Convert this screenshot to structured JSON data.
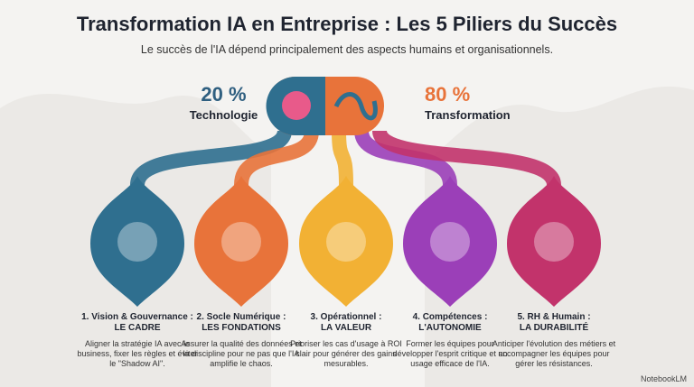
{
  "header": {
    "title": "Transformation IA en Entreprise : Les 5 Piliers du Succès",
    "subtitle": "Le succès de l'IA dépend principalement des aspects humains et organisationnels."
  },
  "split": {
    "left": {
      "percent": "20 %",
      "label": "Technologie"
    },
    "right": {
      "percent": "80 %",
      "label": "Transformation"
    }
  },
  "pillars": [
    {
      "heading": "1. Vision & Gouvernance :",
      "subheading": "LE CADRE",
      "text": "Aligner la stratégie IA avec le business, fixer les règles et éviter le \"Shadow AI\"."
    },
    {
      "heading": "2. Socle Numérique :",
      "subheading": "LES FONDATIONS",
      "text": "Assurer la qualité des données et la discipline pour ne pas que l'IA amplifie le chaos."
    },
    {
      "heading": "3. Opérationnel :",
      "subheading": "LA VALEUR",
      "text": "Prioriser les cas d'usage à ROI clair pour générer des gains mesurables."
    },
    {
      "heading": "4. Compétences :",
      "subheading": "L'AUTONOMIE",
      "text": "Former les équipes pour développer l'esprit critique et un usage efficace de l'IA."
    },
    {
      "heading": "5. RH & Humain :",
      "subheading": "LA DURABILITÉ",
      "text": "Anticiper l'évolution des métiers et accompagner les équipes pour gérer les résistances."
    }
  ],
  "watermark": "NotebookLM"
}
